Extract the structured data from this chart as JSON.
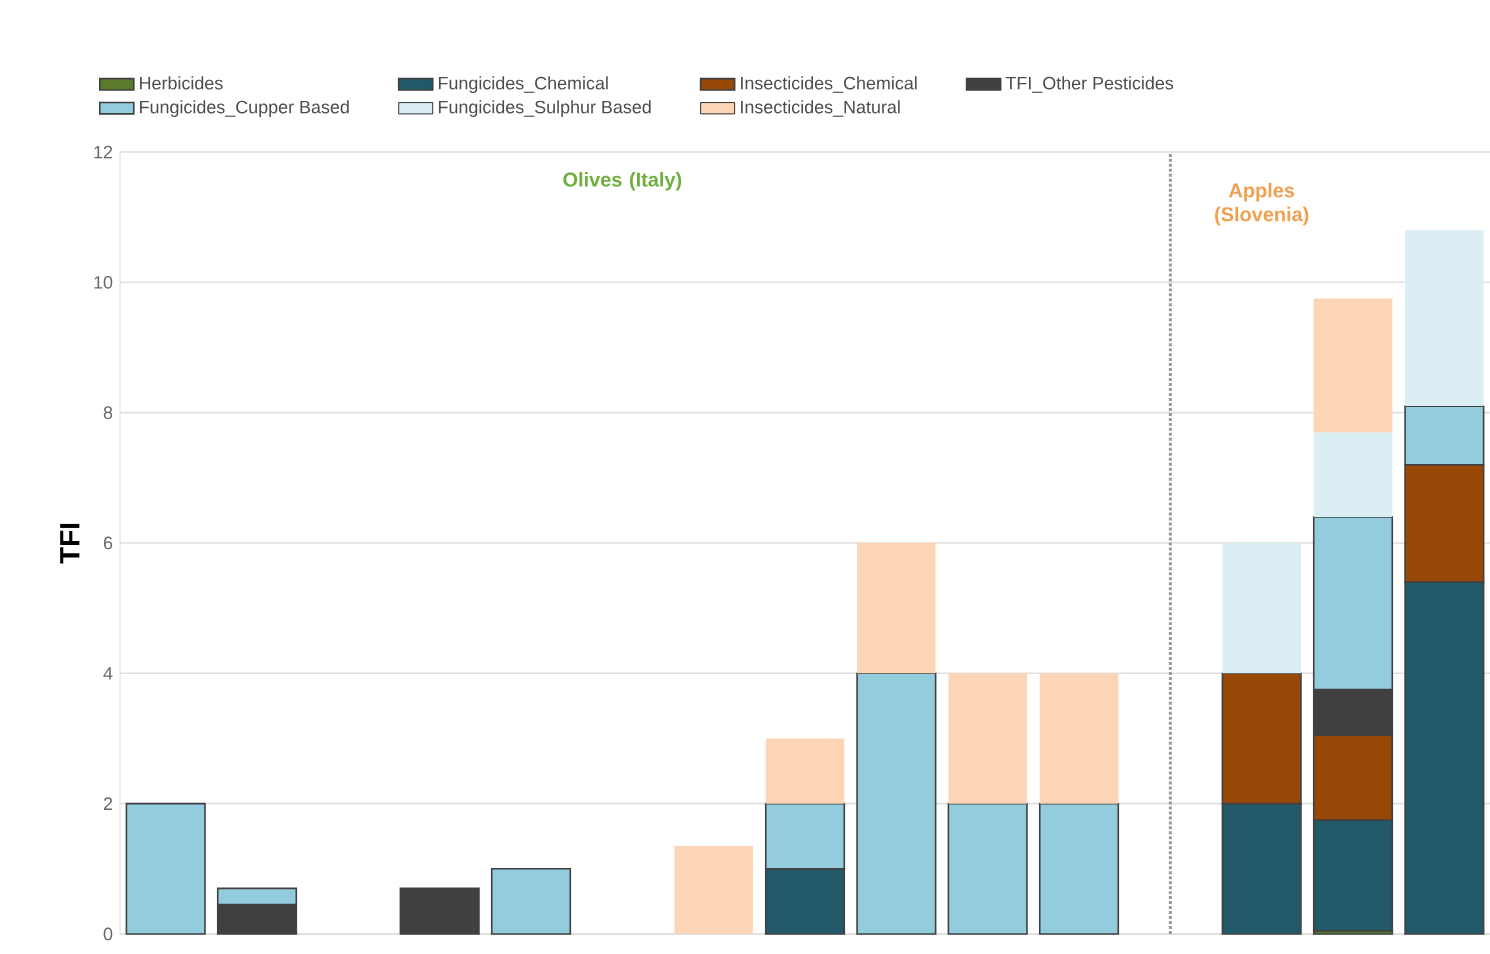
{
  "chart_data": {
    "type": "bar",
    "stacked": true,
    "categories": [
      null,
      null,
      null,
      null,
      null,
      null,
      null,
      null,
      null,
      null,
      null,
      null,
      null,
      null,
      null
    ],
    "ylabel": "TFI",
    "annotations": [
      "Olives (Italy)",
      "Apples (Slovenia)"
    ],
    "series": [
      {
        "name": "Herbicides",
        "color": "#5a7a2e",
        "values": [
          null,
          null,
          null,
          null,
          null,
          null,
          null,
          null,
          null,
          null,
          null,
          null,
          null,
          0.05,
          null
        ]
      },
      {
        "name": "Fungicides_Chemical",
        "color": "#215968",
        "values": [
          null,
          null,
          null,
          null,
          null,
          null,
          null,
          1,
          null,
          null,
          null,
          null,
          2,
          1.7,
          5.4
        ]
      },
      {
        "name": "Insecticides_Chemical",
        "color": "#974706",
        "values": [
          null,
          null,
          null,
          null,
          null,
          null,
          null,
          null,
          null,
          null,
          null,
          null,
          2,
          1.3,
          1.8
        ]
      },
      {
        "name": "TFI_Other Pesticides",
        "color": "#404040",
        "values": [
          null,
          0.45,
          null,
          0.7,
          null,
          null,
          null,
          null,
          null,
          null,
          null,
          null,
          null,
          0.7,
          null
        ]
      },
      {
        "name": "Fungicides_Cupper Based",
        "color": "#93cddd",
        "values": [
          2,
          0.25,
          null,
          null,
          1,
          null,
          null,
          1,
          4,
          2,
          2,
          null,
          null,
          2.65,
          0.9
        ]
      },
      {
        "name": "Fungicides_Sulphur Based",
        "color": "#dbeef4",
        "values": [
          null,
          null,
          null,
          null,
          null,
          null,
          null,
          null,
          null,
          null,
          null,
          null,
          2,
          1.3,
          2.7
        ]
      },
      {
        "name": "Insecticides_Natural",
        "color": "#fbd5b5",
        "values": [
          null,
          null,
          null,
          null,
          null,
          null,
          1.35,
          1,
          2,
          2,
          2,
          null,
          null,
          2.05,
          null
        ]
      }
    ],
    "ylim": [
      0,
      12
    ],
    "yticks": [
      0,
      2,
      4,
      6,
      8,
      10,
      12
    ],
    "grid": "y",
    "legend": "top",
    "tick_labels": "y"
  }
}
